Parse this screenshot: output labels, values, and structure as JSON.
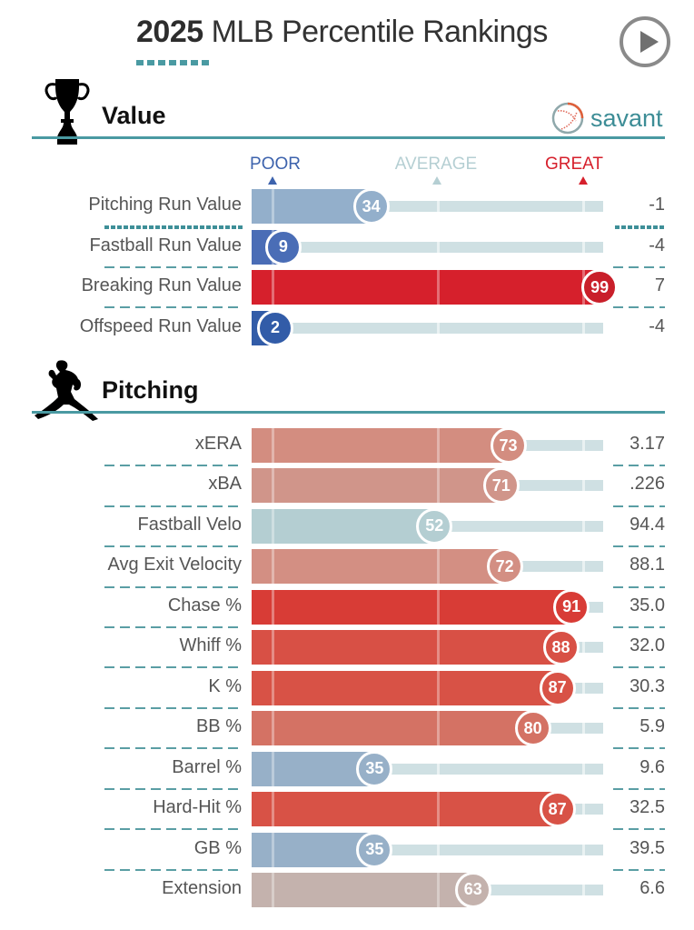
{
  "header": {
    "title_year": "2025",
    "title_rest": "MLB Percentile Rankings",
    "play_button_icon": "play-icon"
  },
  "brand": {
    "name": "savant",
    "icon": "baseball-icon",
    "color": "#3d8d96"
  },
  "legend": {
    "poor": {
      "label": "POOR",
      "color": "#3d63ad"
    },
    "average": {
      "label": "AVERAGE",
      "color": "#b5cfd3"
    },
    "great": {
      "label": "GREAT",
      "color": "#d6202c"
    }
  },
  "chart_data": [
    {
      "type": "bar",
      "title": "Value",
      "icon": "trophy-icon",
      "xlim": [
        0,
        100
      ],
      "categories": [
        "Pitching Run Value",
        "Fastball Run Value",
        "Breaking Run Value",
        "Offspeed Run Value"
      ],
      "percentiles": [
        34,
        9,
        99,
        2
      ],
      "stat_values": [
        "-1",
        "-4",
        "7",
        "-4"
      ],
      "colors": [
        "#93afcb",
        "#4a6db6",
        "#d6202c",
        "#325ca8"
      ]
    },
    {
      "type": "bar",
      "title": "Pitching",
      "icon": "pitcher-icon",
      "xlim": [
        0,
        100
      ],
      "categories": [
        "xERA",
        "xBA",
        "Fastball Velo",
        "Avg Exit Velocity",
        "Chase %",
        "Whiff %",
        "K %",
        "BB %",
        "Barrel %",
        "Hard-Hit %",
        "GB %",
        "Extension"
      ],
      "percentiles": [
        73,
        71,
        52,
        72,
        91,
        88,
        87,
        80,
        35,
        87,
        35,
        63
      ],
      "stat_values": [
        "3.17",
        ".226",
        "94.4",
        "88.1",
        "35.0",
        "32.0",
        "30.3",
        "5.9",
        "9.6",
        "32.5",
        "39.5",
        "6.6"
      ],
      "colors": [
        "#d38d80",
        "#d0958a",
        "#b4ced2",
        "#d38f83",
        "#d83c36",
        "#d85045",
        "#d85246",
        "#d47264",
        "#97b0c8",
        "#d85246",
        "#97b0c8",
        "#c4b2ad"
      ]
    }
  ]
}
